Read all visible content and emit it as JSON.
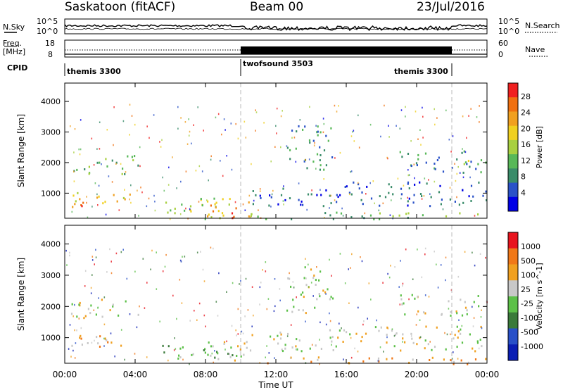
{
  "header": {
    "station": "Saskatoon (fitACF)",
    "beam": "Beam 00",
    "date": "23/Jul/2016"
  },
  "strips": {
    "nsky_label": "N.Sky",
    "nsky_ticks": [
      "10^5",
      "10^0"
    ],
    "nsearch_label": "N.Search",
    "nsearch_ticks": [
      "10^5",
      "10^0"
    ],
    "freq_label_1": "Freq.",
    "freq_label_2": "[MHz]",
    "freq_ticks": [
      "18",
      "8"
    ],
    "nave_label": "Nave",
    "nave_ticks": [
      "60",
      "0"
    ],
    "cpid_label": "CPID",
    "cpid_segments": [
      {
        "name": "themis 3300",
        "start_h": 0,
        "end_h": 10
      },
      {
        "name": "twofsound 3503",
        "start_h": 10,
        "end_h": 22
      },
      {
        "name": "themis 3300",
        "start_h": 22,
        "end_h": 24
      }
    ]
  },
  "colors": {
    "power_scale": [
      "#0000e6",
      "#2a52c8",
      "#3a8c6a",
      "#58b858",
      "#a8d040",
      "#f0d020",
      "#f0a020",
      "#f07010",
      "#f02020"
    ],
    "velocity_scale": [
      "#0a1eb4",
      "#2850c8",
      "#3a7a3a",
      "#5cc048",
      "#c8c8c8",
      "#f0a020",
      "#f07818",
      "#e8141e"
    ]
  },
  "chart_data": [
    {
      "type": "heatmap",
      "title": "",
      "xlabel": "",
      "ylabel": "Slant Range [km]",
      "x_ticks": [
        "00:00",
        "04:00",
        "08:00",
        "12:00",
        "16:00",
        "20:00",
        "00:00"
      ],
      "xlim_hours": [
        0,
        24
      ],
      "ylim": [
        180,
        4600
      ],
      "y_ticks": [
        1000,
        2000,
        3000,
        4000
      ],
      "colorbar_label": "Power [dB]",
      "colorbar_ticks": [
        4,
        8,
        12,
        16,
        20,
        24,
        28
      ],
      "series": [
        {
          "t0": 0.2,
          "t1": 4.2,
          "r0": 1650,
          "r1": 2250,
          "level": 3
        },
        {
          "t0": 0.2,
          "t1": 4.0,
          "r0": 700,
          "r1": 1100,
          "level": 5
        },
        {
          "t0": 0.4,
          "t1": 2.6,
          "r0": 550,
          "r1": 800,
          "level": 7
        },
        {
          "t0": 5.5,
          "t1": 9.5,
          "r0": 180,
          "r1": 900,
          "level": 4
        },
        {
          "t0": 8.0,
          "t1": 10.5,
          "r0": 180,
          "r1": 800,
          "level": 6
        },
        {
          "t0": 8.8,
          "t1": 9.8,
          "r0": 180,
          "r1": 450,
          "level": 8
        },
        {
          "t0": 10.0,
          "t1": 24.0,
          "r0": 180,
          "r1": 420,
          "level": 3
        },
        {
          "t0": 10.5,
          "t1": 15.0,
          "r0": 600,
          "r1": 1200,
          "level": 1
        },
        {
          "t0": 12.5,
          "t1": 15.2,
          "r0": 1800,
          "r1": 3300,
          "level": 2
        },
        {
          "t0": 15.0,
          "t1": 24.0,
          "r0": 600,
          "r1": 1400,
          "level": 1
        },
        {
          "t0": 19.0,
          "t1": 24.0,
          "r0": 1700,
          "r1": 2400,
          "level": 2
        },
        {
          "t0": 22.5,
          "t1": 24.0,
          "r0": 1800,
          "r1": 2100,
          "level": 4
        }
      ]
    },
    {
      "type": "heatmap",
      "title": "",
      "xlabel": "Time UT",
      "ylabel": "Slant Range [km]",
      "x_ticks": [
        "00:00",
        "04:00",
        "08:00",
        "12:00",
        "16:00",
        "20:00",
        "00:00"
      ],
      "xlim_hours": [
        0,
        24
      ],
      "ylim": [
        180,
        4600
      ],
      "y_ticks": [
        1000,
        2000,
        3000,
        4000
      ],
      "colorbar_label": "Velocity [m s^-1]",
      "colorbar_ticks": [
        "1000",
        "500",
        "100",
        "25",
        "-25",
        "-100",
        "-500",
        "-1000"
      ],
      "series": [
        {
          "t0": 0.2,
          "t1": 4.2,
          "r0": 1650,
          "r1": 2250,
          "level": 4
        },
        {
          "t0": 0.2,
          "t1": 4.0,
          "r0": 600,
          "r1": 1100,
          "level": 5
        },
        {
          "t0": 5.5,
          "t1": 10.0,
          "r0": 300,
          "r1": 900,
          "level": 3
        },
        {
          "t0": 7.8,
          "t1": 10.5,
          "r0": 180,
          "r1": 900,
          "level": 4
        },
        {
          "t0": 10.0,
          "t1": 24.0,
          "r0": 180,
          "r1": 400,
          "level": 5
        },
        {
          "t0": 10.5,
          "t1": 15.0,
          "r0": 600,
          "r1": 1200,
          "level": 4
        },
        {
          "t0": 12.5,
          "t1": 15.2,
          "r0": 1800,
          "r1": 3300,
          "level": 4
        },
        {
          "t0": 15.0,
          "t1": 24.0,
          "r0": 600,
          "r1": 1400,
          "level": 4
        },
        {
          "t0": 19.0,
          "t1": 24.0,
          "r0": 1700,
          "r1": 2400,
          "level": 4
        }
      ]
    }
  ]
}
